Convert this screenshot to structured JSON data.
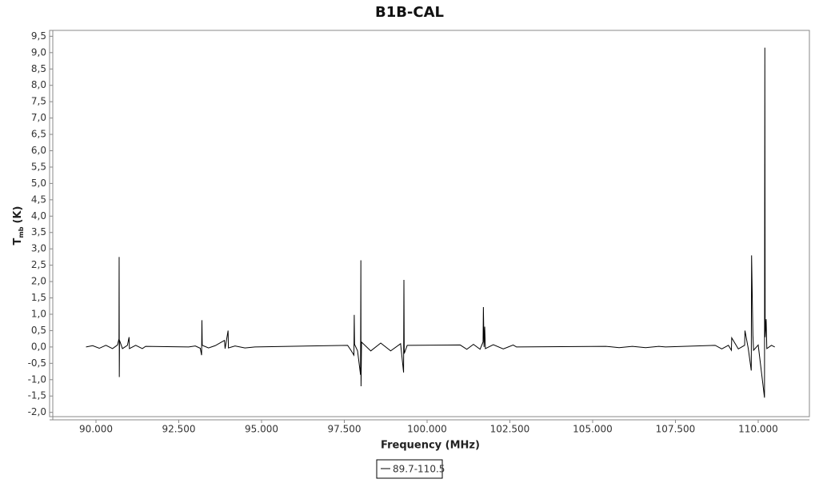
{
  "chart_data": {
    "type": "line",
    "title": "B1B-CAL",
    "x_label": "Frequency (MHz)",
    "y_label_parts": [
      "T",
      "mb",
      "(K)"
    ],
    "xlim": [
      88696,
      111546
    ],
    "ylim": [
      -2.13,
      9.68
    ],
    "xticks": [
      {
        "value": 90000,
        "label": "90.000"
      },
      {
        "value": 92500,
        "label": "92.500"
      },
      {
        "value": 95000,
        "label": "95.000"
      },
      {
        "value": 97500,
        "label": "97.500"
      },
      {
        "value": 100000,
        "label": "100.000"
      },
      {
        "value": 102500,
        "label": "102.500"
      },
      {
        "value": 105000,
        "label": "105.000"
      },
      {
        "value": 107500,
        "label": "107.500"
      },
      {
        "value": 110000,
        "label": "110.000"
      }
    ],
    "yticks": [
      {
        "value": -2,
        "label": "-2,0"
      },
      {
        "value": -1.5,
        "label": "-1,5"
      },
      {
        "value": -1,
        "label": "-1,0"
      },
      {
        "value": -0.5,
        "label": "-0,5"
      },
      {
        "value": 0,
        "label": "0,0"
      },
      {
        "value": 0.5,
        "label": "0,5"
      },
      {
        "value": 1,
        "label": "1,0"
      },
      {
        "value": 1.5,
        "label": "1,5"
      },
      {
        "value": 2,
        "label": "2,0"
      },
      {
        "value": 2.5,
        "label": "2,5"
      },
      {
        "value": 3,
        "label": "3,0"
      },
      {
        "value": 3.5,
        "label": "3,5"
      },
      {
        "value": 4,
        "label": "4,0"
      },
      {
        "value": 4.5,
        "label": "4,5"
      },
      {
        "value": 5,
        "label": "5,0"
      },
      {
        "value": 5.5,
        "label": "5,5"
      },
      {
        "value": 6,
        "label": "6,0"
      },
      {
        "value": 6.5,
        "label": "6,5"
      },
      {
        "value": 7,
        "label": "7,0"
      },
      {
        "value": 7.5,
        "label": "7,5"
      },
      {
        "value": 8,
        "label": "8,0"
      },
      {
        "value": 8.5,
        "label": "8,5"
      },
      {
        "value": 9,
        "label": "9,0"
      },
      {
        "value": 9.5,
        "label": "9,5"
      }
    ],
    "grid": false,
    "x": [
      89700,
      89900,
      90100,
      90300,
      90500,
      90650,
      90695,
      90700,
      90705,
      90712,
      90800,
      90950,
      91000,
      91010,
      91200,
      91400,
      91500,
      92800,
      93000,
      93150,
      93190,
      93200,
      93210,
      93400,
      93600,
      93880,
      93900,
      93990,
      94000,
      94200,
      94500,
      94800,
      97600,
      97700,
      97790,
      97800,
      97810,
      97900,
      97990,
      98000,
      98005,
      98020,
      98300,
      98600,
      98900,
      99200,
      99290,
      99300,
      99310,
      99400,
      101000,
      101200,
      101400,
      101600,
      101690,
      101700,
      101720,
      101740,
      101760,
      102000,
      102300,
      102600,
      102700,
      105400,
      105800,
      106200,
      106600,
      107000,
      107200,
      108700,
      108900,
      109100,
      109190,
      109200,
      109400,
      109590,
      109600,
      109700,
      109790,
      109800,
      109840,
      109860,
      110000,
      110190,
      110200,
      110210,
      110240,
      110260,
      110400,
      110500
    ],
    "series": [
      {
        "name": "89.7-110.5",
        "color": "#000000",
        "values": [
          0,
          0.04,
          -0.04,
          0.05,
          -0.05,
          0.06,
          0.25,
          2.75,
          -0.92,
          0.2,
          -0.05,
          0.05,
          0.3,
          -0.05,
          0.05,
          -0.05,
          0.02,
          0,
          0.03,
          -0.04,
          -0.25,
          0.82,
          0.05,
          -0.03,
          0.04,
          0.2,
          -0.05,
          0.5,
          -0.03,
          0.03,
          -0.03,
          0,
          0.05,
          -0.1,
          -0.25,
          0.98,
          0.08,
          -0.12,
          -0.85,
          2.65,
          -1.2,
          0.15,
          -0.12,
          0.12,
          -0.12,
          0.1,
          -0.78,
          2.05,
          -0.2,
          0.05,
          0.06,
          -0.07,
          0.08,
          -0.07,
          0.15,
          1.22,
          0,
          0.62,
          -0.05,
          0.07,
          -0.06,
          0.06,
          0,
          0.02,
          -0.02,
          0.02,
          -0.02,
          0.02,
          0,
          0.05,
          -0.06,
          0.05,
          -0.1,
          0.28,
          -0.06,
          0.05,
          0.5,
          -0.05,
          -0.72,
          2.8,
          0.35,
          -0.1,
          0.06,
          -1.55,
          9.15,
          0.3,
          0.85,
          -0.05,
          0.05,
          0
        ]
      }
    ]
  }
}
